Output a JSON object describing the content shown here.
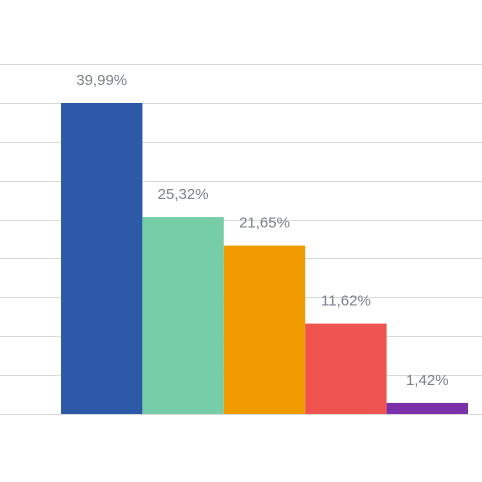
{
  "chart_data": {
    "type": "bar",
    "categories": [
      null,
      null,
      null,
      null,
      null
    ],
    "values": [
      39.99,
      25.32,
      21.65,
      11.62,
      1.42
    ],
    "value_labels": [
      "39,99%",
      "25,32%",
      "21,65%",
      "11,62%",
      "1,42%"
    ],
    "colors": [
      "#2c5aa8",
      "#76cda8",
      "#f09c00",
      "#ef5350",
      "#7b2fa8"
    ],
    "ylim": [
      0,
      45
    ],
    "yticks": [
      0,
      5,
      10,
      15,
      20,
      25,
      30,
      35,
      40,
      45
    ],
    "grid": true
  }
}
